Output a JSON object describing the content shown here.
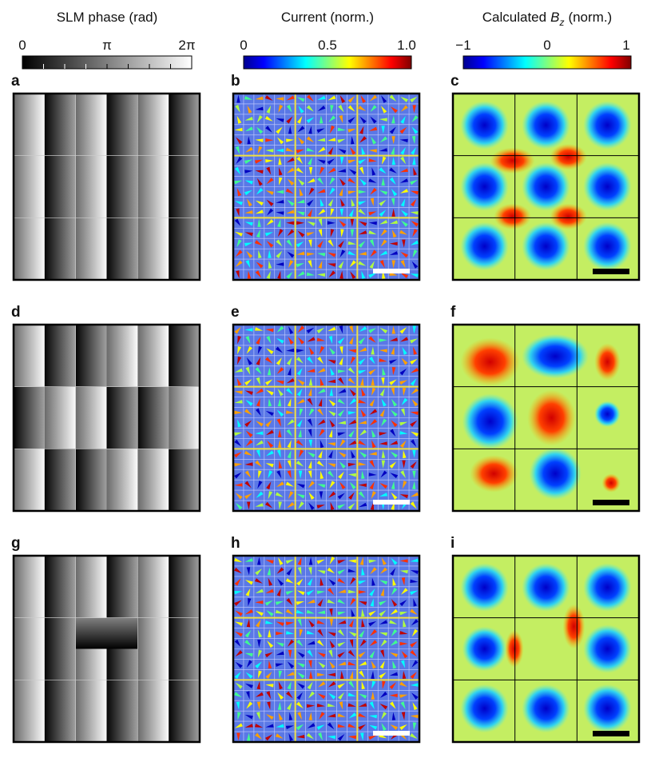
{
  "colorbars": [
    {
      "title": "SLM phase (rad)",
      "ticks": [
        "0",
        "π",
        "2π"
      ]
    },
    {
      "title": "Current (norm.)",
      "ticks": [
        "0",
        "0.5",
        "1.0"
      ]
    },
    {
      "title": "Calculated",
      "symbol": "B",
      "subscript": "z",
      "unit": "(norm.)",
      "ticks": [
        "−1",
        "0",
        "1"
      ]
    }
  ],
  "panels": [
    "a",
    "b",
    "c",
    "d",
    "e",
    "f",
    "g",
    "h",
    "i"
  ]
}
